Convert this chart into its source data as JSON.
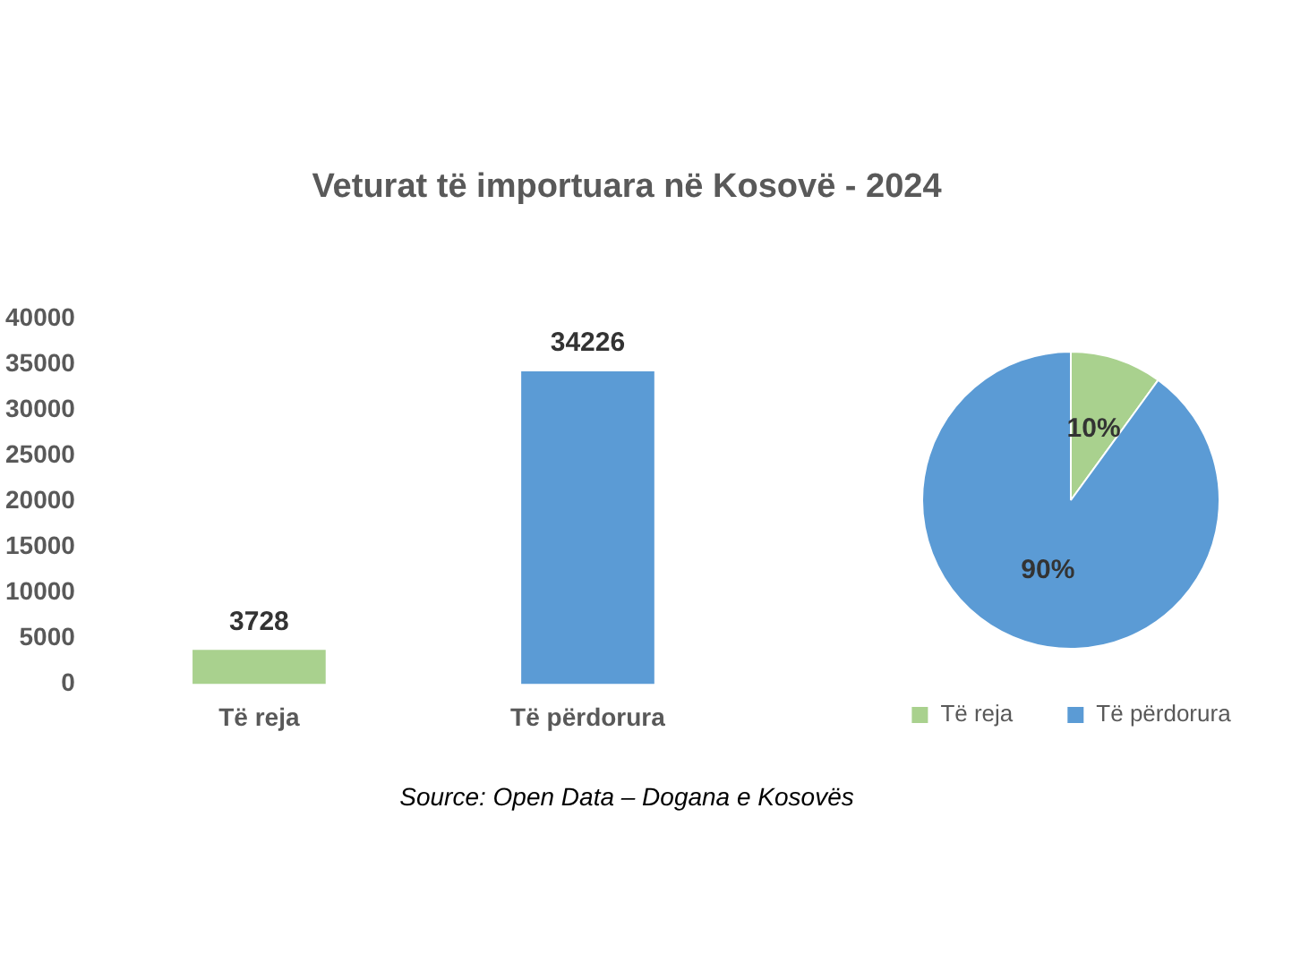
{
  "chart_data": [
    {
      "type": "bar",
      "title": "Veturat të importuara në Kosovë  - 2024",
      "categories": [
        "Të reja",
        "Të përdorura"
      ],
      "values": [
        3728,
        34226
      ],
      "colors": [
        "#a9d18e",
        "#5b9bd5"
      ],
      "ylim": [
        0,
        40000
      ],
      "yticks": [
        0,
        5000,
        10000,
        15000,
        20000,
        25000,
        30000,
        35000,
        40000
      ],
      "data_labels": true,
      "legend": false,
      "annotations": [
        "Source:  Open Data – Dogana e Kosovës"
      ]
    },
    {
      "type": "pie",
      "categories": [
        "Të reja",
        "Të përdorura"
      ],
      "values": [
        10,
        90
      ],
      "colors": [
        "#a9d18e",
        "#5b9bd5"
      ],
      "value_labels": [
        "10%",
        "90%"
      ],
      "legend": "bottom"
    }
  ]
}
